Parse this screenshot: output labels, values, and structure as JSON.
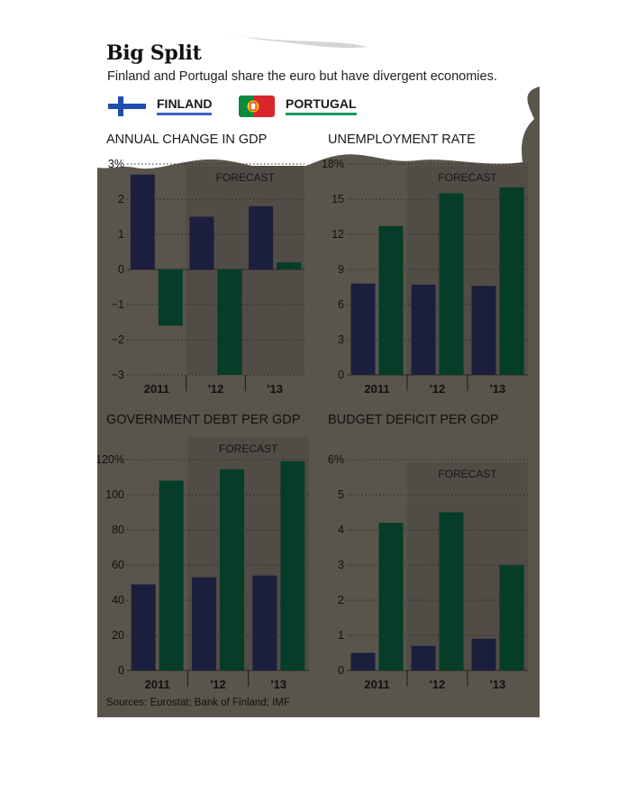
{
  "header": {
    "title": "Big Split",
    "subtitle": "Finland and Portugal share the euro but have divergent economies."
  },
  "legend": [
    {
      "label": "FINLAND",
      "color": "#1b1f3d",
      "underline": "#3a5ec9",
      "icon": "finland-flag-icon"
    },
    {
      "label": "PORTUGAL",
      "color": "#053d28",
      "underline": "#1a9a5a",
      "icon": "portugal-flag-icon"
    }
  ],
  "source": "Sources: Eurostat; Bank of Finland; IMF",
  "colors": {
    "finland": "#1b1f3d",
    "portugal": "#053d28",
    "panel": "#5a554c",
    "forecast_band": "#514c45"
  },
  "chart_data": [
    {
      "type": "bar",
      "title": "ANNUAL CHANGE IN GDP",
      "forecast_label": "FORECAST",
      "categories": [
        "2011",
        "'12",
        "'13"
      ],
      "series": [
        {
          "name": "FINLAND",
          "values": [
            2.7,
            1.5,
            1.8
          ]
        },
        {
          "name": "PORTUGAL",
          "values": [
            -1.6,
            -3.0,
            0.2
          ]
        }
      ],
      "ylim": [
        -3,
        3
      ],
      "yticks": [
        3,
        2,
        1,
        0,
        -1,
        -2,
        -3
      ],
      "ytick_labels": [
        "3%",
        "2",
        "1",
        "0",
        "−1",
        "−2",
        "−3"
      ],
      "forecast_start": 1
    },
    {
      "type": "bar",
      "title": "UNEMPLOYMENT RATE",
      "forecast_label": "FORECAST",
      "categories": [
        "2011",
        "'12",
        "'13"
      ],
      "series": [
        {
          "name": "FINLAND",
          "values": [
            7.8,
            7.7,
            7.6
          ]
        },
        {
          "name": "PORTUGAL",
          "values": [
            12.7,
            15.5,
            16.0
          ]
        }
      ],
      "ylim": [
        0,
        18
      ],
      "yticks": [
        18,
        15,
        12,
        9,
        6,
        3,
        0
      ],
      "ytick_labels": [
        "18%",
        "15",
        "12",
        "9",
        "6",
        "3",
        "0"
      ],
      "forecast_start": 1
    },
    {
      "type": "bar",
      "title": "GOVERNMENT DEBT PER GDP",
      "forecast_label": "FORECAST",
      "categories": [
        "2011",
        "'12",
        "'13"
      ],
      "series": [
        {
          "name": "FINLAND",
          "values": [
            49,
            53,
            54
          ]
        },
        {
          "name": "PORTUGAL",
          "values": [
            108,
            114.5,
            119
          ]
        }
      ],
      "ylim": [
        0,
        120
      ],
      "yticks": [
        120,
        100,
        80,
        60,
        40,
        20,
        0
      ],
      "ytick_labels": [
        "120%",
        "100",
        "80",
        "60",
        "40",
        "20",
        "0"
      ],
      "forecast_start": 1
    },
    {
      "type": "bar",
      "title": "BUDGET DEFICIT PER GDP",
      "forecast_label": "FORECAST",
      "categories": [
        "2011",
        "'12",
        "'13"
      ],
      "series": [
        {
          "name": "FINLAND",
          "values": [
            0.5,
            0.7,
            0.9
          ]
        },
        {
          "name": "PORTUGAL",
          "values": [
            4.2,
            4.5,
            3.0
          ]
        }
      ],
      "ylim": [
        0,
        6
      ],
      "yticks": [
        6,
        5,
        4,
        3,
        2,
        1,
        0
      ],
      "ytick_labels": [
        "6%",
        "5",
        "4",
        "3",
        "2",
        "1",
        "0"
      ],
      "forecast_start": 1
    }
  ]
}
